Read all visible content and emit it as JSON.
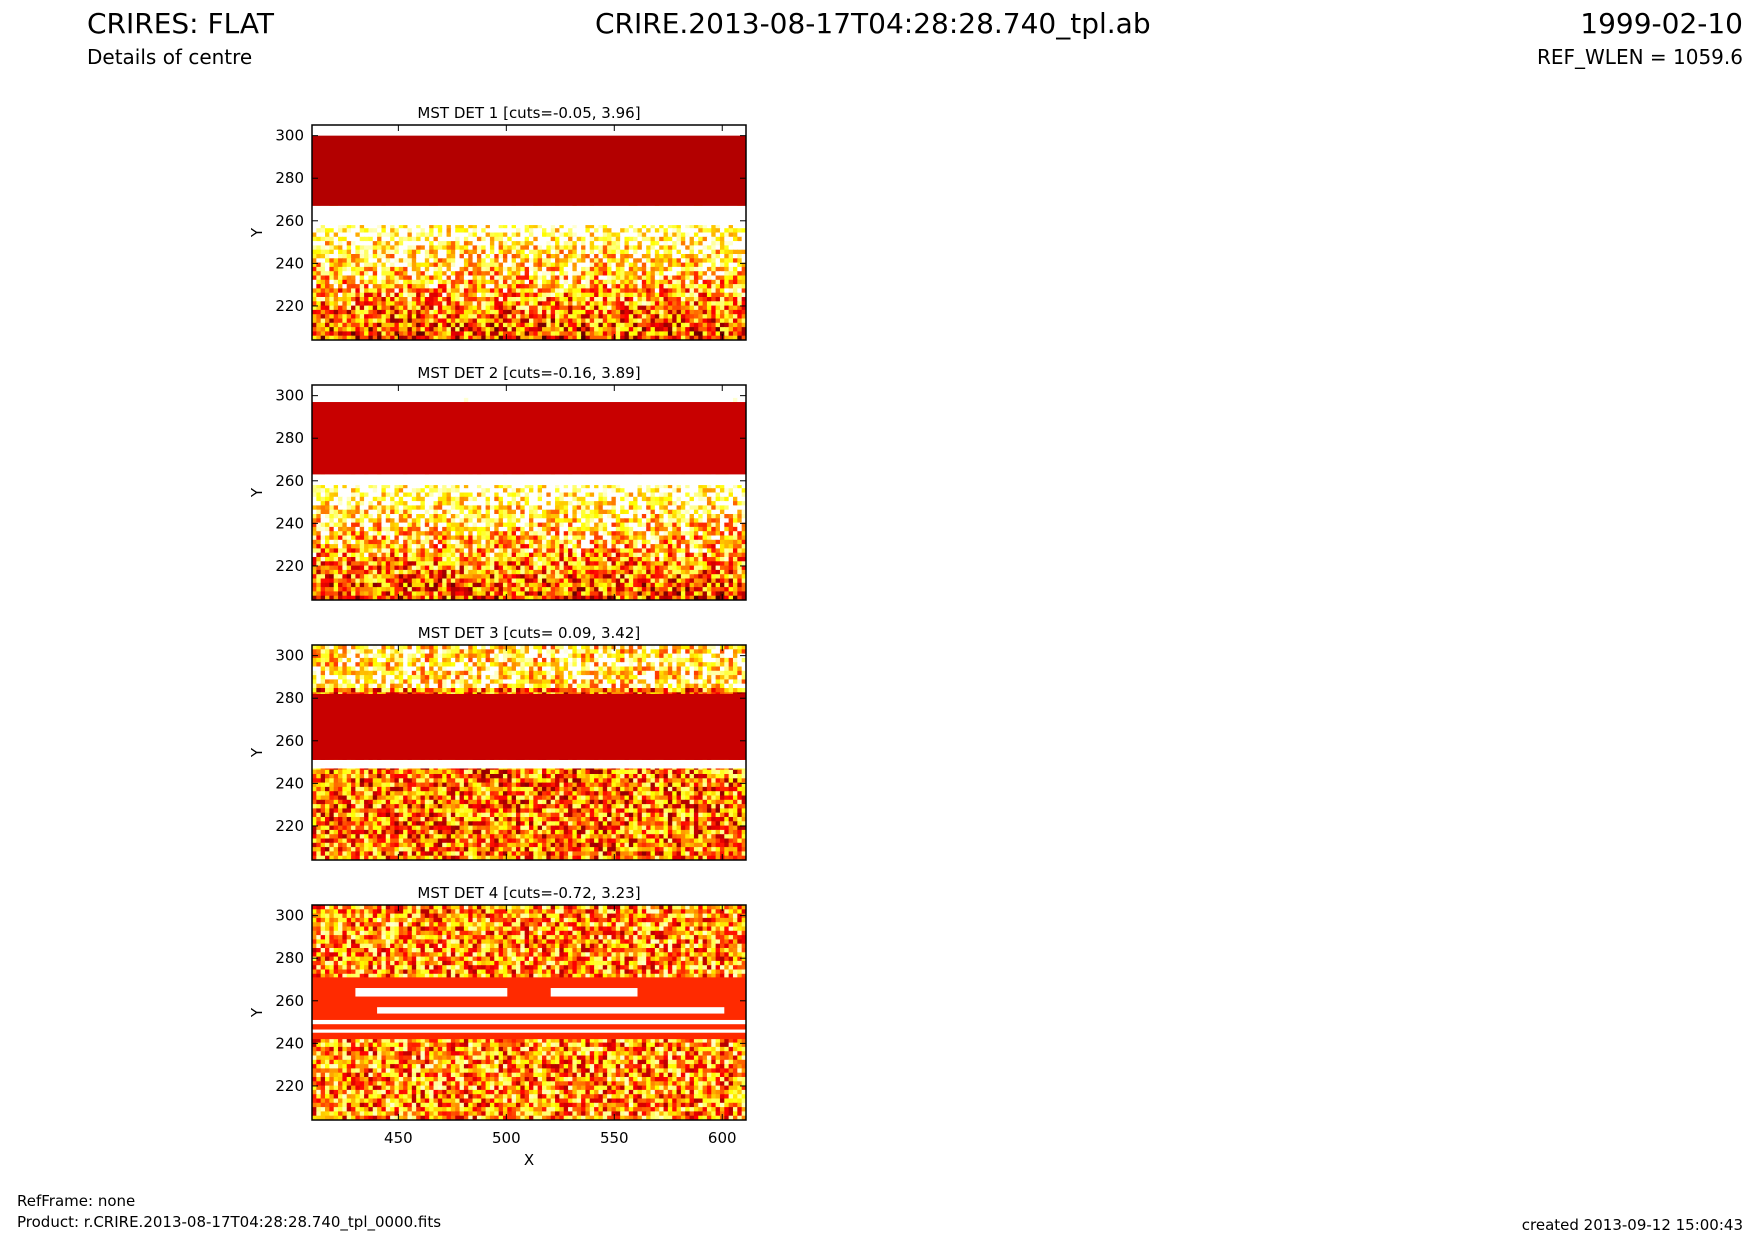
{
  "header": {
    "title": "CRIRES: FLAT",
    "subtitle": "Details of centre",
    "filename": "CRIRE.2013-08-17T04:28:28.740_tpl.ab",
    "date": "1999-02-10",
    "ref_wlen": "REF_WLEN = 1059.6"
  },
  "footer": {
    "refframe": "RefFrame: none",
    "product": "Product: r.CRIRE.2013-08-17T04:28:28.740_tpl_0000.fits",
    "created": "created 2013-09-12 15:00:43"
  },
  "colors": {
    "dark_red": "#b30000",
    "red": "#c80000",
    "orange_red": "#ff2a00",
    "yellow": "#ffee00",
    "white": "#ffffff"
  },
  "chart_data": {
    "type": "heatmap",
    "colormap": "hot",
    "xlabel": "X",
    "ylabel": "Y",
    "xlim": [
      410,
      611
    ],
    "ylim": [
      204,
      305
    ],
    "xticks": [
      450,
      500,
      550,
      600
    ],
    "yticks": [
      220,
      240,
      260,
      280,
      300
    ],
    "panels": [
      {
        "title": "MST DET 1 [cuts=-0.05, 3.96]",
        "cuts": [
          -0.05,
          3.96
        ],
        "saturated_band": [
          267,
          300
        ],
        "saturated_color": "dark_red",
        "white_gap": [
          258,
          267
        ]
      },
      {
        "title": "MST DET 2 [cuts=-0.16, 3.89]",
        "cuts": [
          -0.16,
          3.89
        ],
        "saturated_band": [
          263,
          297
        ],
        "saturated_color": "red",
        "white_gap": [
          258,
          263
        ]
      },
      {
        "title": "MST DET 3 [cuts= 0.09, 3.42]",
        "cuts": [
          0.09,
          3.42
        ],
        "saturated_band": [
          251,
          282
        ],
        "saturated_color": "red",
        "white_gap": [
          247,
          251
        ]
      },
      {
        "title": "MST DET 4 [cuts=-0.72, 3.23]",
        "cuts": [
          -0.72,
          3.23
        ],
        "saturated_band": [
          242,
          271
        ],
        "saturated_color": "orange_red",
        "white_gap": []
      }
    ]
  }
}
